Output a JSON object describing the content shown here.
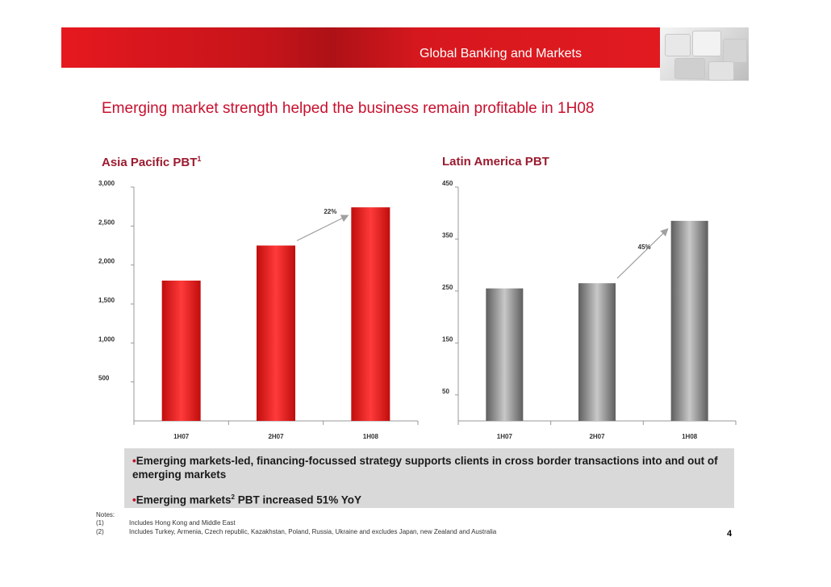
{
  "header": {
    "title": "Global Banking and Markets"
  },
  "headline": "Emerging market strength helped the business remain profitable in 1H08",
  "chart_data": [
    {
      "type": "bar",
      "title": "Asia Pacific PBT",
      "title_footnote": "1",
      "categories": [
        "1H07",
        "2H07",
        "1H08"
      ],
      "values": [
        1800,
        2250,
        2740
      ],
      "ylim": [
        0,
        3000
      ],
      "yticks": [
        "3,000",
        "2,500",
        "2,000",
        "1,500",
        "1,000",
        "500"
      ],
      "ytick_values": [
        3000,
        2500,
        2000,
        1500,
        1000,
        500
      ],
      "annotation": {
        "text": "22%",
        "from": "2H07",
        "to": "1H08"
      },
      "bar_color": "#e41b1b",
      "grid": false
    },
    {
      "type": "bar",
      "title": "Latin America PBT",
      "categories": [
        "1H07",
        "2H07",
        "1H08"
      ],
      "values": [
        255,
        265,
        385
      ],
      "ylim": [
        0,
        450
      ],
      "yticks": [
        "450",
        "350",
        "250",
        "150",
        "50"
      ],
      "ytick_values": [
        450,
        350,
        250,
        150,
        50
      ],
      "annotation": {
        "text": "45%",
        "from": "2H07",
        "to": "1H08"
      },
      "bar_color": "#8a8a8a",
      "grid": false
    }
  ],
  "bullets": [
    {
      "marker": "•",
      "text": "Emerging markets-led, financing-focussed strategy supports clients in cross border transactions into and out of emerging markets"
    },
    {
      "marker": "•",
      "text_before": "Emerging markets",
      "sup": "2",
      "text_after": " PBT increased 51% YoY"
    }
  ],
  "notes": {
    "heading": "Notes:",
    "items": [
      {
        "label": "(1)",
        "text": "Includes Hong Kong and Middle East"
      },
      {
        "label": "(2)",
        "text": "Includes Turkey, Armenia, Czech republic, Kazakhstan, Poland, Russia, Ukraine and excludes Japan, new Zealand and Australia"
      }
    ]
  },
  "page_number": "4"
}
